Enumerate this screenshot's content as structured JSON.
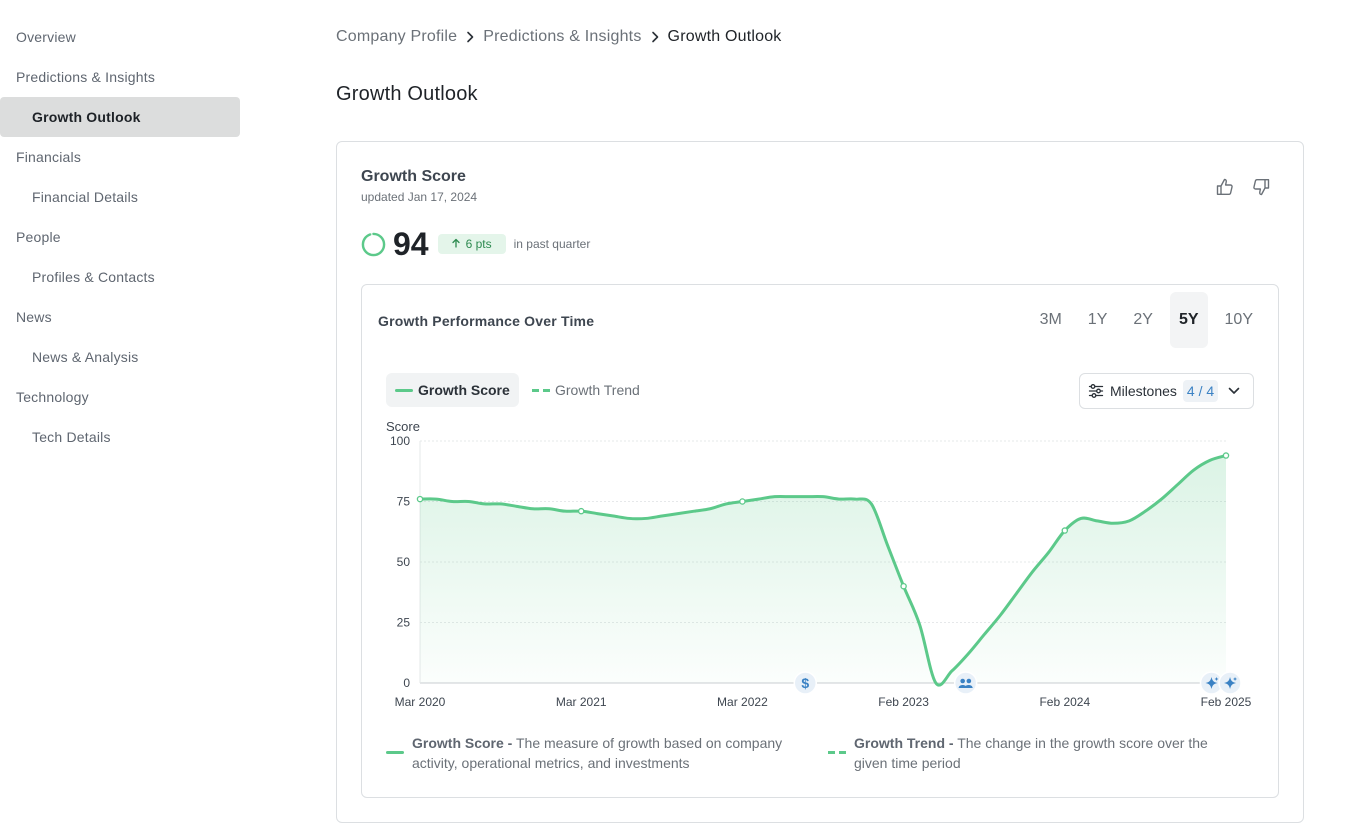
{
  "sidebar": {
    "items": [
      {
        "label": "Overview"
      },
      {
        "label": "Predictions & Insights"
      },
      {
        "label": "Growth Outlook"
      },
      {
        "label": "Financials"
      },
      {
        "label": "Financial Details"
      },
      {
        "label": "People"
      },
      {
        "label": "Profiles & Contacts"
      },
      {
        "label": "News"
      },
      {
        "label": "News & Analysis"
      },
      {
        "label": "Technology"
      },
      {
        "label": "Tech Details"
      }
    ]
  },
  "breadcrumb": {
    "items": [
      "Company Profile",
      "Predictions & Insights",
      "Growth Outlook"
    ]
  },
  "page": {
    "title": "Growth Outlook"
  },
  "card": {
    "title": "Growth Score",
    "updated": "updated Jan 17, 2024",
    "score": "94",
    "delta": "6 pts",
    "delta_note": "in past quarter",
    "accent": "#5cc98a"
  },
  "panel": {
    "title": "Growth Performance Over Time",
    "ranges": [
      "3M",
      "1Y",
      "2Y",
      "5Y",
      "10Y"
    ],
    "active_range": "5Y",
    "legend_score": "Growth Score",
    "legend_trend": "Growth Trend",
    "milestones_label": "Milestones",
    "milestones_count": "4 / 4"
  },
  "chart_data": {
    "type": "area",
    "ylabel": "Score",
    "ylim": [
      0,
      100
    ],
    "yticks": [
      0,
      25,
      50,
      75,
      100
    ],
    "xticks": [
      "Mar 2020",
      "Mar 2021",
      "Mar 2022",
      "Feb 2023",
      "Feb 2024",
      "Feb 2025"
    ],
    "series": [
      {
        "name": "Growth Score",
        "color": "#5cc98a",
        "x": [
          0.0,
          0.02,
          0.04,
          0.06,
          0.08,
          0.1,
          0.12,
          0.14,
          0.16,
          0.18,
          0.2,
          0.22,
          0.24,
          0.26,
          0.28,
          0.3,
          0.32,
          0.34,
          0.36,
          0.38,
          0.4,
          0.42,
          0.44,
          0.46,
          0.48,
          0.5,
          0.52,
          0.54,
          0.56,
          0.58,
          0.6,
          0.62,
          0.64,
          0.66,
          0.68,
          0.7,
          0.72,
          0.74,
          0.76,
          0.78,
          0.8,
          0.82,
          0.84,
          0.86,
          0.88,
          0.9,
          0.92,
          0.94,
          0.96,
          0.98,
          1.0
        ],
        "values": [
          76,
          76,
          75,
          75,
          74,
          74,
          73,
          72,
          72,
          71,
          71,
          70,
          69,
          68,
          68,
          69,
          70,
          71,
          72,
          74,
          75,
          76,
          77,
          77,
          77,
          77,
          76,
          76,
          74,
          57,
          40,
          24,
          0,
          5,
          12,
          20,
          28,
          37,
          46,
          54,
          63,
          68,
          67,
          66,
          67,
          71,
          76,
          82,
          88,
          92,
          94
        ],
        "markers": [
          0.0,
          0.2,
          0.4,
          0.6,
          0.8,
          1.0
        ]
      }
    ],
    "milestones": [
      {
        "position": 0.478,
        "icon": "dollar-icon"
      },
      {
        "position": 0.677,
        "icon": "people-icon"
      },
      {
        "position": 0.982,
        "icon": "sparkle-icon"
      },
      {
        "position": 1.005,
        "icon": "sparkle-icon"
      }
    ],
    "grid": true
  },
  "footer_legend": {
    "score_title": "Growth Score -",
    "score_desc": "The measure of growth based on company activity, operational metrics, and investments",
    "trend_title": "Growth Trend -",
    "trend_desc": "The change in the growth score over the given time period"
  }
}
